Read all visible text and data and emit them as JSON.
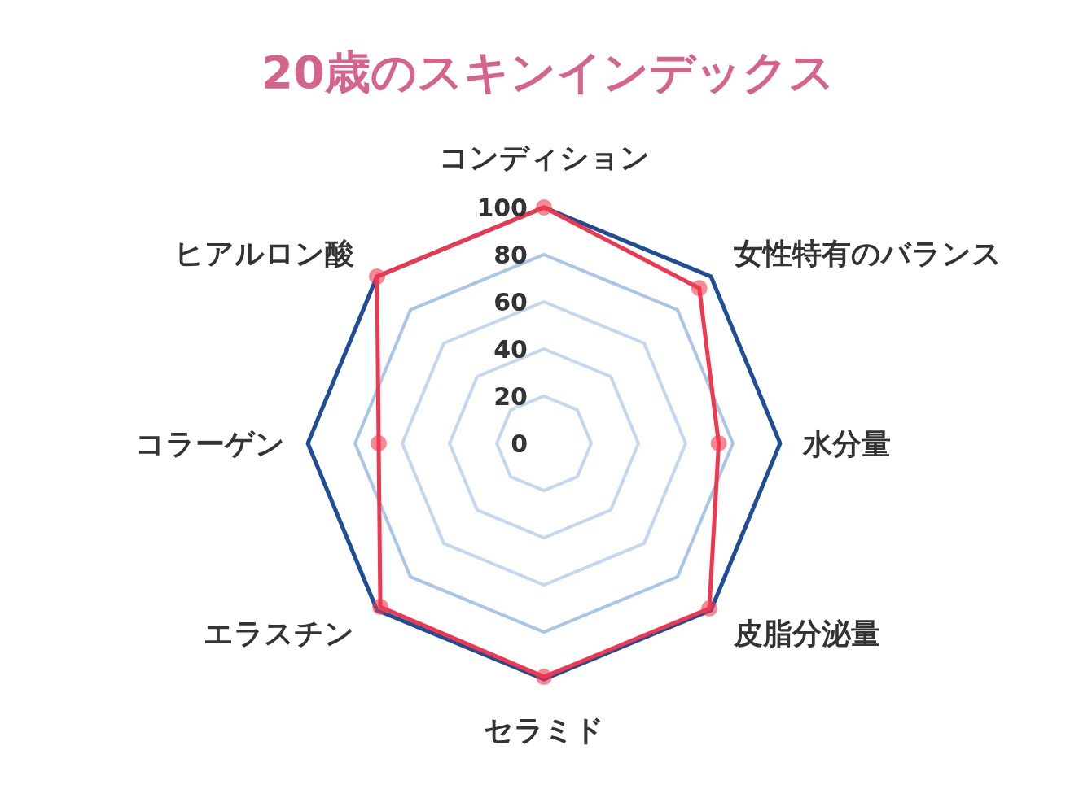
{
  "chart_data": {
    "type": "radar",
    "title": "20歳のスキンインデックス",
    "categories": [
      "コンディション",
      "女性特有のバランス",
      "水分量",
      "皮脂分泌量",
      "セラミド",
      "エラスチン",
      "コラーゲン",
      "ヒアルロン酸"
    ],
    "series": [
      {
        "color": "#f0374f",
        "values": [
          100,
          93,
          74,
          99,
          99,
          98,
          70,
          100
        ],
        "marker": "circle"
      }
    ],
    "ylim": [
      0,
      100
    ],
    "yticks": [
      0,
      20,
      40,
      60,
      80,
      100
    ]
  }
}
